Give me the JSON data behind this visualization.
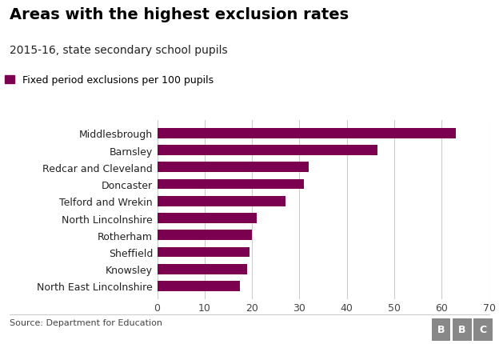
{
  "title": "Areas with the highest exclusion rates",
  "subtitle": "2015-16, state secondary school pupils",
  "legend_label": "Fixed period exclusions per 100 pupils",
  "source": "Source: Department for Education",
  "bar_color": "#7B0050",
  "background_color": "#ffffff",
  "categories": [
    "North East Lincolnshire",
    "Knowsley",
    "Sheffield",
    "Rotherham",
    "North Lincolnshire",
    "Telford and Wrekin",
    "Doncaster",
    "Redcar and Cleveland",
    "Barnsley",
    "Middlesbrough"
  ],
  "values": [
    17.5,
    19.0,
    19.5,
    20.0,
    21.0,
    27.0,
    31.0,
    32.0,
    46.5,
    63.0
  ],
  "xlim": [
    0,
    70
  ],
  "xticks": [
    0,
    10,
    20,
    30,
    40,
    50,
    60,
    70
  ],
  "title_fontsize": 14,
  "subtitle_fontsize": 10,
  "legend_fontsize": 9,
  "tick_fontsize": 9,
  "source_fontsize": 8
}
